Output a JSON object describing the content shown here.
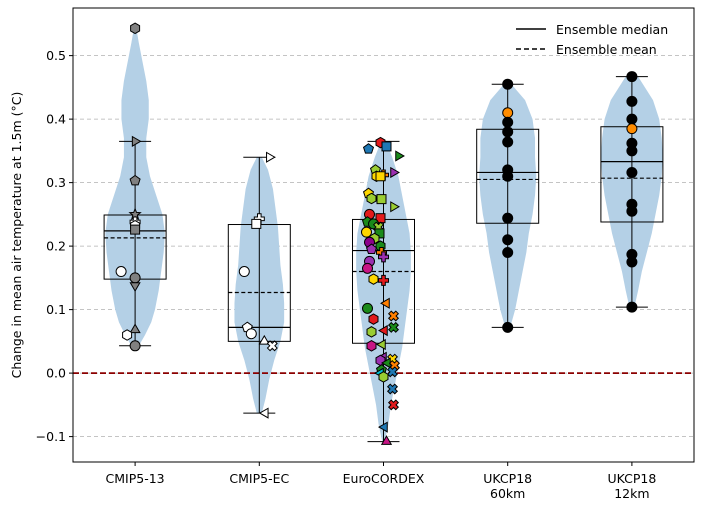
{
  "chart_data": {
    "type": "violin-box",
    "ylabel": "Change in mean air temperature at 1.5m (°C)",
    "ylim": [
      -0.14,
      0.575
    ],
    "yticks": [
      -0.1,
      0.0,
      0.1,
      0.2,
      0.3,
      0.4,
      0.5
    ],
    "ytick_labels": [
      "−0.1",
      "0.0",
      "0.1",
      "0.2",
      "0.3",
      "0.4",
      "0.5"
    ],
    "grid": "horizontal dashed",
    "zero_line": {
      "y": 0.0,
      "color": "#8b0000",
      "style": "dashed"
    },
    "legend": {
      "placement": "top-right",
      "entries": [
        {
          "label": "Ensemble median",
          "style": "solid"
        },
        {
          "label": "Ensemble mean",
          "style": "dashed"
        }
      ]
    },
    "colors": {
      "violin": "#b4d0e6",
      "box": "#000000"
    },
    "groups": [
      {
        "label": "CMIP5-13",
        "min": 0.043,
        "q1": 0.148,
        "median": 0.224,
        "mean": 0.213,
        "q3": 0.249,
        "max": 0.365,
        "wmin": 0.043,
        "wmax": 0.365,
        "violin": [
          [
            0.043,
            0.03
          ],
          [
            0.06,
            0.08
          ],
          [
            0.08,
            0.13
          ],
          [
            0.1,
            0.16
          ],
          [
            0.13,
            0.19
          ],
          [
            0.16,
            0.21
          ],
          [
            0.19,
            0.23
          ],
          [
            0.22,
            0.24
          ],
          [
            0.25,
            0.22
          ],
          [
            0.28,
            0.17
          ],
          [
            0.31,
            0.12
          ],
          [
            0.34,
            0.09
          ],
          [
            0.37,
            0.09
          ],
          [
            0.4,
            0.11
          ],
          [
            0.43,
            0.11
          ],
          [
            0.46,
            0.09
          ],
          [
            0.49,
            0.06
          ],
          [
            0.52,
            0.03
          ],
          [
            0.543,
            0.01
          ]
        ],
        "points": [
          {
            "y": 0.543,
            "m": "hexagon",
            "c": "#808080"
          },
          {
            "y": 0.365,
            "m": "tri-right",
            "c": "#808080"
          },
          {
            "y": 0.303,
            "m": "pentagon",
            "c": "#808080"
          },
          {
            "y": 0.25,
            "m": "star",
            "c": "#808080"
          },
          {
            "y": 0.238,
            "m": "plus",
            "c": "#ffffff"
          },
          {
            "y": 0.232,
            "m": "hexagon",
            "c": "#ffffff"
          },
          {
            "y": 0.226,
            "m": "square",
            "c": "#808080"
          },
          {
            "y": 0.16,
            "m": "circle",
            "c": "#ffffff",
            "dx": -14
          },
          {
            "y": 0.15,
            "m": "circle",
            "c": "#808080"
          },
          {
            "y": 0.138,
            "m": "tri-down",
            "c": "#808080"
          },
          {
            "y": 0.068,
            "m": "tri-up",
            "c": "#808080"
          },
          {
            "y": 0.06,
            "m": "hexagon",
            "c": "#ffffff",
            "dx": -8
          },
          {
            "y": 0.043,
            "m": "circle",
            "c": "#808080"
          }
        ]
      },
      {
        "label": "CMIP5-EC",
        "min": -0.063,
        "q1": 0.05,
        "median": 0.072,
        "mean": 0.127,
        "q3": 0.234,
        "max": 0.34,
        "wmin": -0.063,
        "wmax": 0.34,
        "violin": [
          [
            -0.063,
            0.02
          ],
          [
            -0.04,
            0.05
          ],
          [
            -0.01,
            0.08
          ],
          [
            0.02,
            0.12
          ],
          [
            0.05,
            0.17
          ],
          [
            0.08,
            0.2
          ],
          [
            0.11,
            0.2
          ],
          [
            0.14,
            0.19
          ],
          [
            0.17,
            0.17
          ],
          [
            0.2,
            0.16
          ],
          [
            0.23,
            0.15
          ],
          [
            0.26,
            0.13
          ],
          [
            0.29,
            0.11
          ],
          [
            0.32,
            0.07
          ],
          [
            0.34,
            0.02
          ]
        ],
        "points": [
          {
            "y": 0.34,
            "m": "tri-right",
            "c": "#ffffff",
            "dx": 10
          },
          {
            "y": 0.243,
            "m": "plus",
            "c": "#ffffff"
          },
          {
            "y": 0.235,
            "m": "square",
            "c": "#ffffff",
            "dx": -3
          },
          {
            "y": 0.16,
            "m": "circle",
            "c": "#ffffff",
            "dx": -15
          },
          {
            "y": 0.072,
            "m": "pentagon",
            "c": "#ffffff",
            "dx": -12
          },
          {
            "y": 0.062,
            "m": "circle",
            "c": "#ffffff",
            "dx": -8
          },
          {
            "y": 0.05,
            "m": "tri-up",
            "c": "#ffffff",
            "dx": 5
          },
          {
            "y": 0.043,
            "m": "x",
            "c": "#ffffff",
            "dx": 13
          },
          {
            "y": -0.063,
            "m": "tri-left",
            "c": "#ffffff",
            "dx": 6
          }
        ]
      },
      {
        "label": "EuroCORDEX",
        "min": -0.108,
        "q1": 0.047,
        "median": 0.193,
        "mean": 0.16,
        "q3": 0.242,
        "max": 0.365,
        "wmin": -0.108,
        "wmax": 0.365,
        "violin": [
          [
            -0.108,
            0.01
          ],
          [
            -0.08,
            0.04
          ],
          [
            -0.05,
            0.06
          ],
          [
            -0.02,
            0.09
          ],
          [
            0.01,
            0.12
          ],
          [
            0.04,
            0.15
          ],
          [
            0.07,
            0.17
          ],
          [
            0.1,
            0.19
          ],
          [
            0.13,
            0.21
          ],
          [
            0.16,
            0.22
          ],
          [
            0.19,
            0.22
          ],
          [
            0.22,
            0.21
          ],
          [
            0.25,
            0.18
          ],
          [
            0.28,
            0.15
          ],
          [
            0.31,
            0.12
          ],
          [
            0.34,
            0.07
          ],
          [
            0.365,
            0.02
          ]
        ],
        "points": [
          {
            "y": 0.363,
            "m": "hexagon",
            "c": "#e31a1c",
            "dx": -3
          },
          {
            "y": 0.357,
            "m": "square",
            "c": "#1f78b4",
            "dx": 3
          },
          {
            "y": 0.353,
            "m": "pentagon",
            "c": "#1f78b4",
            "dx": -15
          },
          {
            "y": 0.342,
            "m": "tri-right",
            "c": "#1a8a1a",
            "dx": 15
          },
          {
            "y": 0.32,
            "m": "pentagon",
            "c": "#9acd32",
            "dx": -8
          },
          {
            "y": 0.316,
            "m": "tri-right",
            "c": "#9b30b0",
            "dx": 10
          },
          {
            "y": 0.312,
            "m": "plus",
            "c": "#ff7f00",
            "dx": 0
          },
          {
            "y": 0.31,
            "m": "hexagon",
            "c": "#ffd700",
            "dx": -7
          },
          {
            "y": 0.31,
            "m": "square",
            "c": "#ffd700",
            "dx": -3
          },
          {
            "y": 0.283,
            "m": "pentagon",
            "c": "#ffd700",
            "dx": -15
          },
          {
            "y": 0.275,
            "m": "hexagon",
            "c": "#9acd32",
            "dx": -12
          },
          {
            "y": 0.274,
            "m": "square",
            "c": "#9acd32",
            "dx": -2
          },
          {
            "y": 0.262,
            "m": "tri-right",
            "c": "#9acd32",
            "dx": 10
          },
          {
            "y": 0.25,
            "m": "circle",
            "c": "#e31a1c",
            "dx": -14
          },
          {
            "y": 0.244,
            "m": "square",
            "c": "#e31a1c",
            "dx": -3
          },
          {
            "y": 0.238,
            "m": "pentagon",
            "c": "#1a8a1a",
            "dx": -16
          },
          {
            "y": 0.235,
            "m": "circle",
            "c": "#1a8a1a",
            "dx": -10
          },
          {
            "y": 0.23,
            "m": "x",
            "c": "#9acd32",
            "dx": -5
          },
          {
            "y": 0.222,
            "m": "circle",
            "c": "#ffd700",
            "dx": -17
          },
          {
            "y": 0.22,
            "m": "square",
            "c": "#1a8a1a",
            "dx": -4
          },
          {
            "y": 0.212,
            "m": "hexagon",
            "c": "#9acd32",
            "dx": -9
          },
          {
            "y": 0.206,
            "m": "circle",
            "c": "#8b008b",
            "dx": -14
          },
          {
            "y": 0.2,
            "m": "hexagon",
            "c": "#1a8a1a",
            "dx": -3
          },
          {
            "y": 0.195,
            "m": "pentagon",
            "c": "#9b30b0",
            "dx": -12
          },
          {
            "y": 0.19,
            "m": "plus",
            "c": "#ff7f00",
            "dx": -2
          },
          {
            "y": 0.183,
            "m": "plus",
            "c": "#9b30b0",
            "dx": 0
          },
          {
            "y": 0.176,
            "m": "circle",
            "c": "#9b30b0",
            "dx": -14
          },
          {
            "y": 0.165,
            "m": "circle",
            "c": "#c71585",
            "dx": -16
          },
          {
            "y": 0.148,
            "m": "hexagon",
            "c": "#ffd700",
            "dx": -10
          },
          {
            "y": 0.146,
            "m": "plus",
            "c": "#e31a1c",
            "dx": 0
          },
          {
            "y": 0.11,
            "m": "tri-left",
            "c": "#ff7f00",
            "dx": 3
          },
          {
            "y": 0.102,
            "m": "circle",
            "c": "#1a8a1a",
            "dx": -16
          },
          {
            "y": 0.09,
            "m": "x",
            "c": "#ff7f00",
            "dx": 10
          },
          {
            "y": 0.085,
            "m": "hexagon",
            "c": "#e31a1c",
            "dx": -10
          },
          {
            "y": 0.072,
            "m": "x",
            "c": "#1a8a1a",
            "dx": 10
          },
          {
            "y": 0.067,
            "m": "tri-left",
            "c": "#e31a1c",
            "dx": 1
          },
          {
            "y": 0.065,
            "m": "hexagon",
            "c": "#9acd32",
            "dx": -12
          },
          {
            "y": 0.045,
            "m": "tri-left",
            "c": "#9acd32",
            "dx": -1
          },
          {
            "y": 0.043,
            "m": "hexagon",
            "c": "#c71585",
            "dx": -12
          },
          {
            "y": 0.025,
            "m": "tri-left",
            "c": "#9b30b0",
            "dx": 0
          },
          {
            "y": 0.022,
            "m": "x",
            "c": "#ffd700",
            "dx": 9
          },
          {
            "y": 0.02,
            "m": "hexagon",
            "c": "#9b30b0",
            "dx": -3
          },
          {
            "y": 0.016,
            "m": "tri-left",
            "c": "#1a8a1a",
            "dx": 4
          },
          {
            "y": 0.012,
            "m": "x",
            "c": "#ff7f00",
            "dx": 11
          },
          {
            "y": 0.005,
            "m": "pentagon",
            "c": "#1a8a1a",
            "dx": -2
          },
          {
            "y": 0.002,
            "m": "x",
            "c": "#1f78b4",
            "dx": 9
          },
          {
            "y": 0.0,
            "m": "tri-left",
            "c": "#00bcd4",
            "dx": -3
          },
          {
            "y": -0.006,
            "m": "hexagon",
            "c": "#9acd32",
            "dx": 0
          },
          {
            "y": -0.025,
            "m": "x",
            "c": "#1f78b4",
            "dx": 9
          },
          {
            "y": -0.05,
            "m": "x",
            "c": "#e31a1c",
            "dx": 10
          },
          {
            "y": -0.085,
            "m": "tri-left",
            "c": "#1f78b4",
            "dx": 1
          },
          {
            "y": -0.108,
            "m": "tri-up",
            "c": "#c71585",
            "dx": 3
          }
        ]
      },
      {
        "label": "UKCP18\n60km",
        "min": 0.072,
        "q1": 0.236,
        "median": 0.316,
        "mean": 0.305,
        "q3": 0.384,
        "max": 0.455,
        "wmin": 0.072,
        "wmax": 0.455,
        "violin": [
          [
            0.072,
            0.02
          ],
          [
            0.1,
            0.06
          ],
          [
            0.13,
            0.09
          ],
          [
            0.16,
            0.12
          ],
          [
            0.19,
            0.15
          ],
          [
            0.22,
            0.17
          ],
          [
            0.25,
            0.2
          ],
          [
            0.28,
            0.22
          ],
          [
            0.31,
            0.23
          ],
          [
            0.34,
            0.22
          ],
          [
            0.37,
            0.22
          ],
          [
            0.4,
            0.2
          ],
          [
            0.43,
            0.14
          ],
          [
            0.455,
            0.03
          ]
        ],
        "points": [
          {
            "y": 0.455,
            "m": "circle",
            "c": "#000000"
          },
          {
            "y": 0.41,
            "m": "circle",
            "c": "#ff8c00"
          },
          {
            "y": 0.395,
            "m": "circle",
            "c": "#000000"
          },
          {
            "y": 0.38,
            "m": "circle",
            "c": "#000000"
          },
          {
            "y": 0.364,
            "m": "circle",
            "c": "#000000"
          },
          {
            "y": 0.32,
            "m": "circle",
            "c": "#000000"
          },
          {
            "y": 0.31,
            "m": "circle",
            "c": "#000000"
          },
          {
            "y": 0.244,
            "m": "circle",
            "c": "#000000"
          },
          {
            "y": 0.21,
            "m": "circle",
            "c": "#000000"
          },
          {
            "y": 0.19,
            "m": "circle",
            "c": "#000000"
          },
          {
            "y": 0.072,
            "m": "circle",
            "c": "#000000"
          }
        ]
      },
      {
        "label": "UKCP18\n12km",
        "min": 0.104,
        "q1": 0.238,
        "median": 0.333,
        "mean": 0.307,
        "q3": 0.388,
        "max": 0.467,
        "wmin": 0.104,
        "wmax": 0.467,
        "violin": [
          [
            0.104,
            0.02
          ],
          [
            0.13,
            0.05
          ],
          [
            0.16,
            0.08
          ],
          [
            0.19,
            0.12
          ],
          [
            0.22,
            0.16
          ],
          [
            0.25,
            0.19
          ],
          [
            0.28,
            0.22
          ],
          [
            0.31,
            0.24
          ],
          [
            0.34,
            0.25
          ],
          [
            0.37,
            0.24
          ],
          [
            0.4,
            0.22
          ],
          [
            0.43,
            0.17
          ],
          [
            0.467,
            0.05
          ]
        ],
        "points": [
          {
            "y": 0.467,
            "m": "circle",
            "c": "#000000"
          },
          {
            "y": 0.428,
            "m": "circle",
            "c": "#000000"
          },
          {
            "y": 0.4,
            "m": "circle",
            "c": "#000000"
          },
          {
            "y": 0.385,
            "m": "circle",
            "c": "#ff8c00"
          },
          {
            "y": 0.362,
            "m": "circle",
            "c": "#000000"
          },
          {
            "y": 0.35,
            "m": "circle",
            "c": "#000000"
          },
          {
            "y": 0.316,
            "m": "circle",
            "c": "#000000"
          },
          {
            "y": 0.266,
            "m": "circle",
            "c": "#000000"
          },
          {
            "y": 0.255,
            "m": "circle",
            "c": "#000000"
          },
          {
            "y": 0.187,
            "m": "circle",
            "c": "#000000"
          },
          {
            "y": 0.175,
            "m": "circle",
            "c": "#000000"
          },
          {
            "y": 0.104,
            "m": "circle",
            "c": "#000000"
          }
        ]
      }
    ]
  }
}
